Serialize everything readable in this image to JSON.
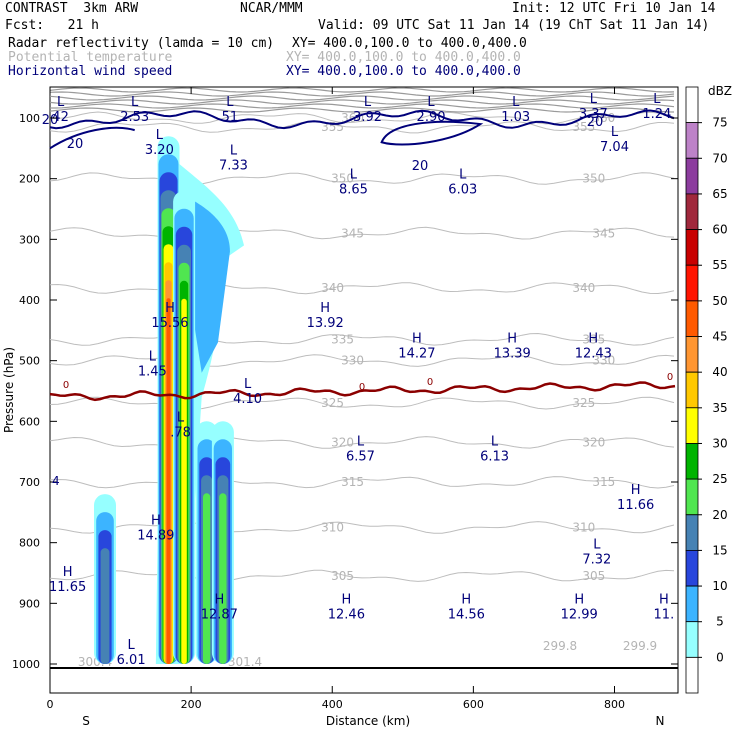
{
  "header": {
    "model": "CONTRAST  3km ARW",
    "org": "NCAR/MMM",
    "init": "Init: 12 UTC Fri 10 Jan 14",
    "fcst": "Fcst:   21 h",
    "valid": "Valid: 09 UTC Sat 11 Jan 14 (19 ChT Sat 11 Jan 14)",
    "field1_name": "Radar reflectivity (lamda = 10 cm)",
    "field1_xy": "XY= 400.0,100.0 to 400.0,400.0",
    "field2_name": "Potential temperature",
    "field2_xy": "XY= 400.0,100.0 to 400.0,400.0",
    "field3_name": "Horizontal wind speed",
    "field3_xy": "XY= 400.0,100.0 to 400.0,400.0"
  },
  "chart_data": {
    "type": "cross-section",
    "xlabel": "Distance (km)",
    "ylabel": "Pressure (hPa)",
    "xlim": [
      0,
      890
    ],
    "ylim": [
      1050,
      50
    ],
    "x_ticks": [
      "0",
      "200",
      "400",
      "600",
      "800"
    ],
    "x_tick_values": [
      0,
      200,
      400,
      600,
      800
    ],
    "y_ticks": [
      "100",
      "200",
      "300",
      "400",
      "500",
      "600",
      "700",
      "800",
      "900",
      "1000"
    ],
    "y_tick_values": [
      100,
      200,
      300,
      400,
      500,
      600,
      700,
      800,
      900,
      1000
    ],
    "endpoints": {
      "left": "S",
      "right": "N"
    },
    "colorbar": {
      "unit": "dBZ",
      "levels": [
        "75",
        "70",
        "65",
        "60",
        "55",
        "50",
        "45",
        "40",
        "35",
        "30",
        "25",
        "20",
        "15",
        "10",
        "5",
        "0"
      ],
      "colors": [
        "#ffffff",
        "#bd82c8",
        "#8c3c9e",
        "#a0283c",
        "#c80000",
        "#ff1400",
        "#ff5a00",
        "#ff9632",
        "#ffc800",
        "#ffff00",
        "#00b400",
        "#50e650",
        "#4682b4",
        "#2846dc",
        "#3cb4ff",
        "#96ffff",
        "#ffffff"
      ]
    },
    "theta_contours": [
      {
        "label": "355",
        "p": 115
      },
      {
        "label": "350",
        "p": 200
      },
      {
        "label": "345",
        "p": 290
      },
      {
        "label": "340",
        "p": 380
      },
      {
        "label": "335",
        "p": 465
      },
      {
        "label": "330",
        "p": 500
      },
      {
        "label": "325",
        "p": 570
      },
      {
        "label": "320",
        "p": 635
      },
      {
        "label": "315",
        "p": 700
      },
      {
        "label": "310",
        "p": 775
      },
      {
        "label": "305",
        "p": 855
      },
      {
        "label": "360",
        "p": 100
      }
    ],
    "theta_minor_labels": [
      "299.8",
      "299.9",
      "300.4",
      "301.4"
    ],
    "wind_contour_labels": [
      "20",
      "20",
      "20",
      "20"
    ],
    "freezing_level_label": "0",
    "hl_markers": [
      {
        "type": "L",
        "value": "2.53",
        "x": 120,
        "p": 80
      },
      {
        "type": "L",
        "value": "51",
        "x": 255,
        "p": 80
      },
      {
        "type": "L",
        "value": "3.92",
        "x": 450,
        "p": 80
      },
      {
        "type": "L",
        "value": "2.90",
        "x": 540,
        "p": 80
      },
      {
        "type": "L",
        "value": "1.03",
        "x": 660,
        "p": 80
      },
      {
        "type": "L",
        "value": "3.37",
        "x": 770,
        "p": 75
      },
      {
        "type": "L",
        "value": "1.24",
        "x": 860,
        "p": 75
      },
      {
        "type": "L",
        "value": "3.20",
        "x": 155,
        "p": 135
      },
      {
        "type": "L",
        "value": "7.33",
        "x": 260,
        "p": 160
      },
      {
        "type": "L",
        "value": "8.65",
        "x": 430,
        "p": 200
      },
      {
        "type": "L",
        "value": "6.03",
        "x": 585,
        "p": 200
      },
      {
        "type": "L",
        "value": "7.04",
        "x": 800,
        "p": 130
      },
      {
        "type": "H",
        "value": "15.56",
        "x": 170,
        "p": 420
      },
      {
        "type": "H",
        "value": "13.92",
        "x": 390,
        "p": 420
      },
      {
        "type": "H",
        "value": "14.27",
        "x": 520,
        "p": 470
      },
      {
        "type": "H",
        "value": "13.39",
        "x": 655,
        "p": 470
      },
      {
        "type": "H",
        "value": "12.43",
        "x": 770,
        "p": 470
      },
      {
        "type": "L",
        "value": "1.45",
        "x": 145,
        "p": 500
      },
      {
        "type": "L",
        "value": "4.10",
        "x": 280,
        "p": 545
      },
      {
        "type": "L",
        "value": ".78",
        "x": 185,
        "p": 600
      },
      {
        "type": "L",
        "value": "6.57",
        "x": 440,
        "p": 640
      },
      {
        "type": "L",
        "value": "6.13",
        "x": 630,
        "p": 640
      },
      {
        "type": "H",
        "value": "11.66",
        "x": 830,
        "p": 720
      },
      {
        "type": "H",
        "value": "14.89",
        "x": 150,
        "p": 770
      },
      {
        "type": "L",
        "value": "7.32",
        "x": 775,
        "p": 810
      },
      {
        "type": "H",
        "value": "11.65",
        "x": 25,
        "p": 855
      },
      {
        "type": "H",
        "value": "12.87",
        "x": 240,
        "p": 900
      },
      {
        "type": "H",
        "value": "12.46",
        "x": 420,
        "p": 900
      },
      {
        "type": "H",
        "value": "14.56",
        "x": 590,
        "p": 900
      },
      {
        "type": "H",
        "value": "12.99",
        "x": 750,
        "p": 900
      },
      {
        "type": "H",
        "value": "11.",
        "x": 870,
        "p": 900
      },
      {
        "type": "L",
        "value": "6.01",
        "x": 115,
        "p": 975
      },
      {
        "type": "L",
        "value": "42",
        "x": 15,
        "p": 80
      }
    ],
    "reflectivity_columns": [
      {
        "x": 168,
        "p_top": 130,
        "p_bot": 1000,
        "max_dbz": 50
      },
      {
        "x": 190,
        "p_top": 220,
        "p_bot": 1000,
        "max_dbz": 35
      },
      {
        "x": 222,
        "p_top": 600,
        "p_bot": 1000,
        "max_dbz": 25
      },
      {
        "x": 245,
        "p_top": 600,
        "p_bot": 1000,
        "max_dbz": 25
      },
      {
        "x": 78,
        "p_top": 720,
        "p_bot": 1000,
        "max_dbz": 20
      }
    ]
  },
  "labels": {
    "side_label_left": "4"
  }
}
